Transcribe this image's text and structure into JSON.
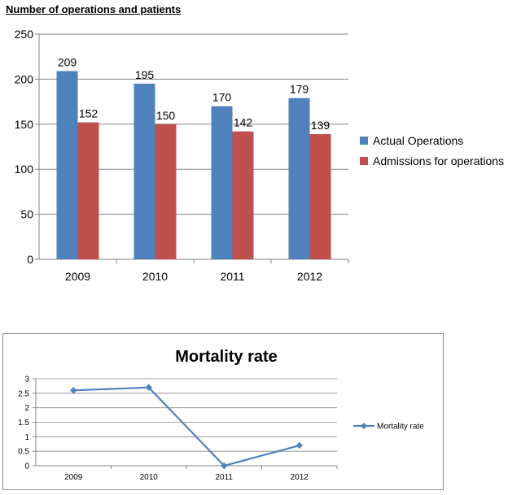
{
  "chart_data": [
    {
      "type": "bar",
      "title": "Number of operations and patients",
      "categories": [
        "2009",
        "2010",
        "2011",
        "2012"
      ],
      "series": [
        {
          "name": "Actual Operations",
          "values": [
            209,
            195,
            170,
            179
          ],
          "color": "#4f81bd"
        },
        {
          "name": "Admissions for operations",
          "values": [
            152,
            150,
            142,
            139
          ],
          "color": "#c0504d"
        }
      ],
      "ylim": [
        0,
        250
      ],
      "yticks": [
        "0",
        "50",
        "100",
        "150",
        "200",
        "250"
      ],
      "grid": true,
      "legend": "right"
    },
    {
      "type": "line",
      "title": "Mortality rate",
      "categories": [
        "2009",
        "2010",
        "2011",
        "2012"
      ],
      "series": [
        {
          "name": "Mortality rate",
          "values": [
            2.6,
            2.7,
            0,
            0.7
          ],
          "color": "#4f81bd"
        }
      ],
      "ylim": [
        0,
        3
      ],
      "yticks": [
        "0",
        "0.5",
        "1",
        "1.5",
        "2",
        "2.5",
        "3"
      ],
      "grid": true,
      "legend": "right"
    }
  ]
}
